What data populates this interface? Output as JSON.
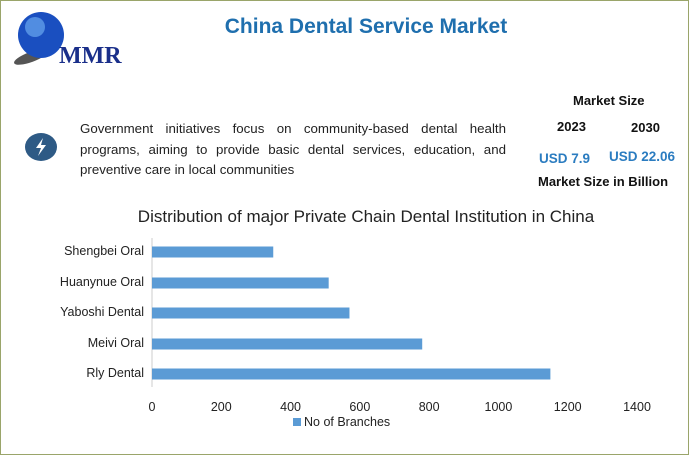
{
  "header": {
    "title": "China Dental Service Market",
    "logo_text": "MMR"
  },
  "highlight": {
    "icon": "lightning-bolt-icon",
    "text": "Government initiatives focus on community-based dental health programs, aiming to provide basic dental services, education, and preventive care in local communities"
  },
  "market": {
    "heading": "Market Size",
    "year_start": "2023",
    "year_end": "2030",
    "value_start": "USD 7.9",
    "value_end": "USD 22.06",
    "unit_note": "Market Size in Billion"
  },
  "colors": {
    "title": "#1f6fae",
    "bar": "#5b9bd5",
    "value": "#2b7cc0"
  },
  "chart_data": {
    "type": "bar",
    "orientation": "horizontal",
    "title": "Distribution of major Private Chain Dental Institution in China",
    "categories": [
      "Shengbei Oral",
      "Huanynue Oral",
      "Yaboshi Dental",
      "Meivi Oral",
      "Rly Dental"
    ],
    "series": [
      {
        "name": "No of Branches",
        "values": [
          350,
          510,
          570,
          780,
          1150
        ]
      }
    ],
    "xlim": [
      0,
      1400
    ],
    "xticks": [
      "0",
      "200",
      "400",
      "600",
      "800",
      "1000",
      "1200",
      "1400"
    ],
    "grid": false,
    "legend": "bottom"
  }
}
